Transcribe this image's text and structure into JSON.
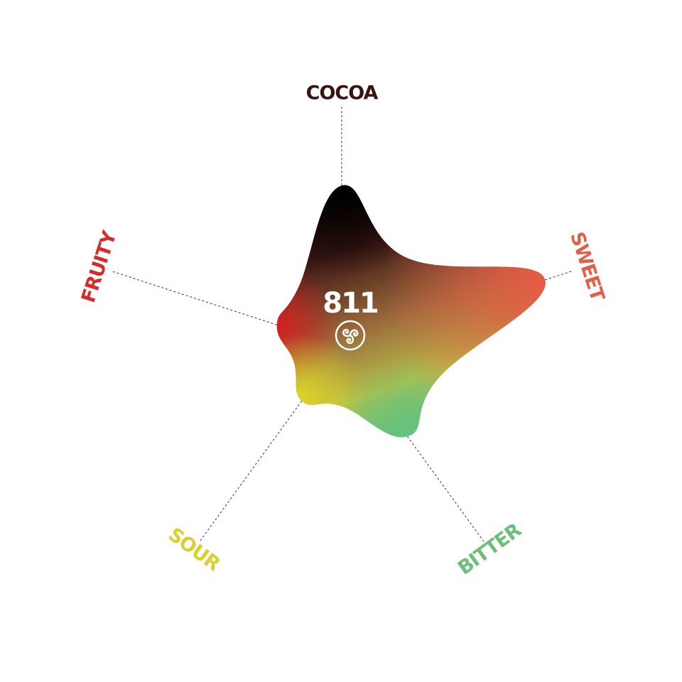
{
  "chart_data": {
    "type": "radar",
    "axes": [
      "COCOA",
      "SWEET",
      "BITTER",
      "SOUR",
      "FRUITY"
    ],
    "values": [
      0.66,
      0.88,
      0.46,
      0.28,
      0.28
    ],
    "range": [
      0,
      1
    ],
    "grid": false,
    "colors": {
      "COCOA": "#3a1410",
      "SWEET": "#e0614b",
      "BITTER": "#6cbf7a",
      "SOUR": "#d8d02c",
      "FRUITY": "#d42b2b"
    },
    "center_label": "811",
    "center_icon": "triskelion-logo-icon"
  }
}
